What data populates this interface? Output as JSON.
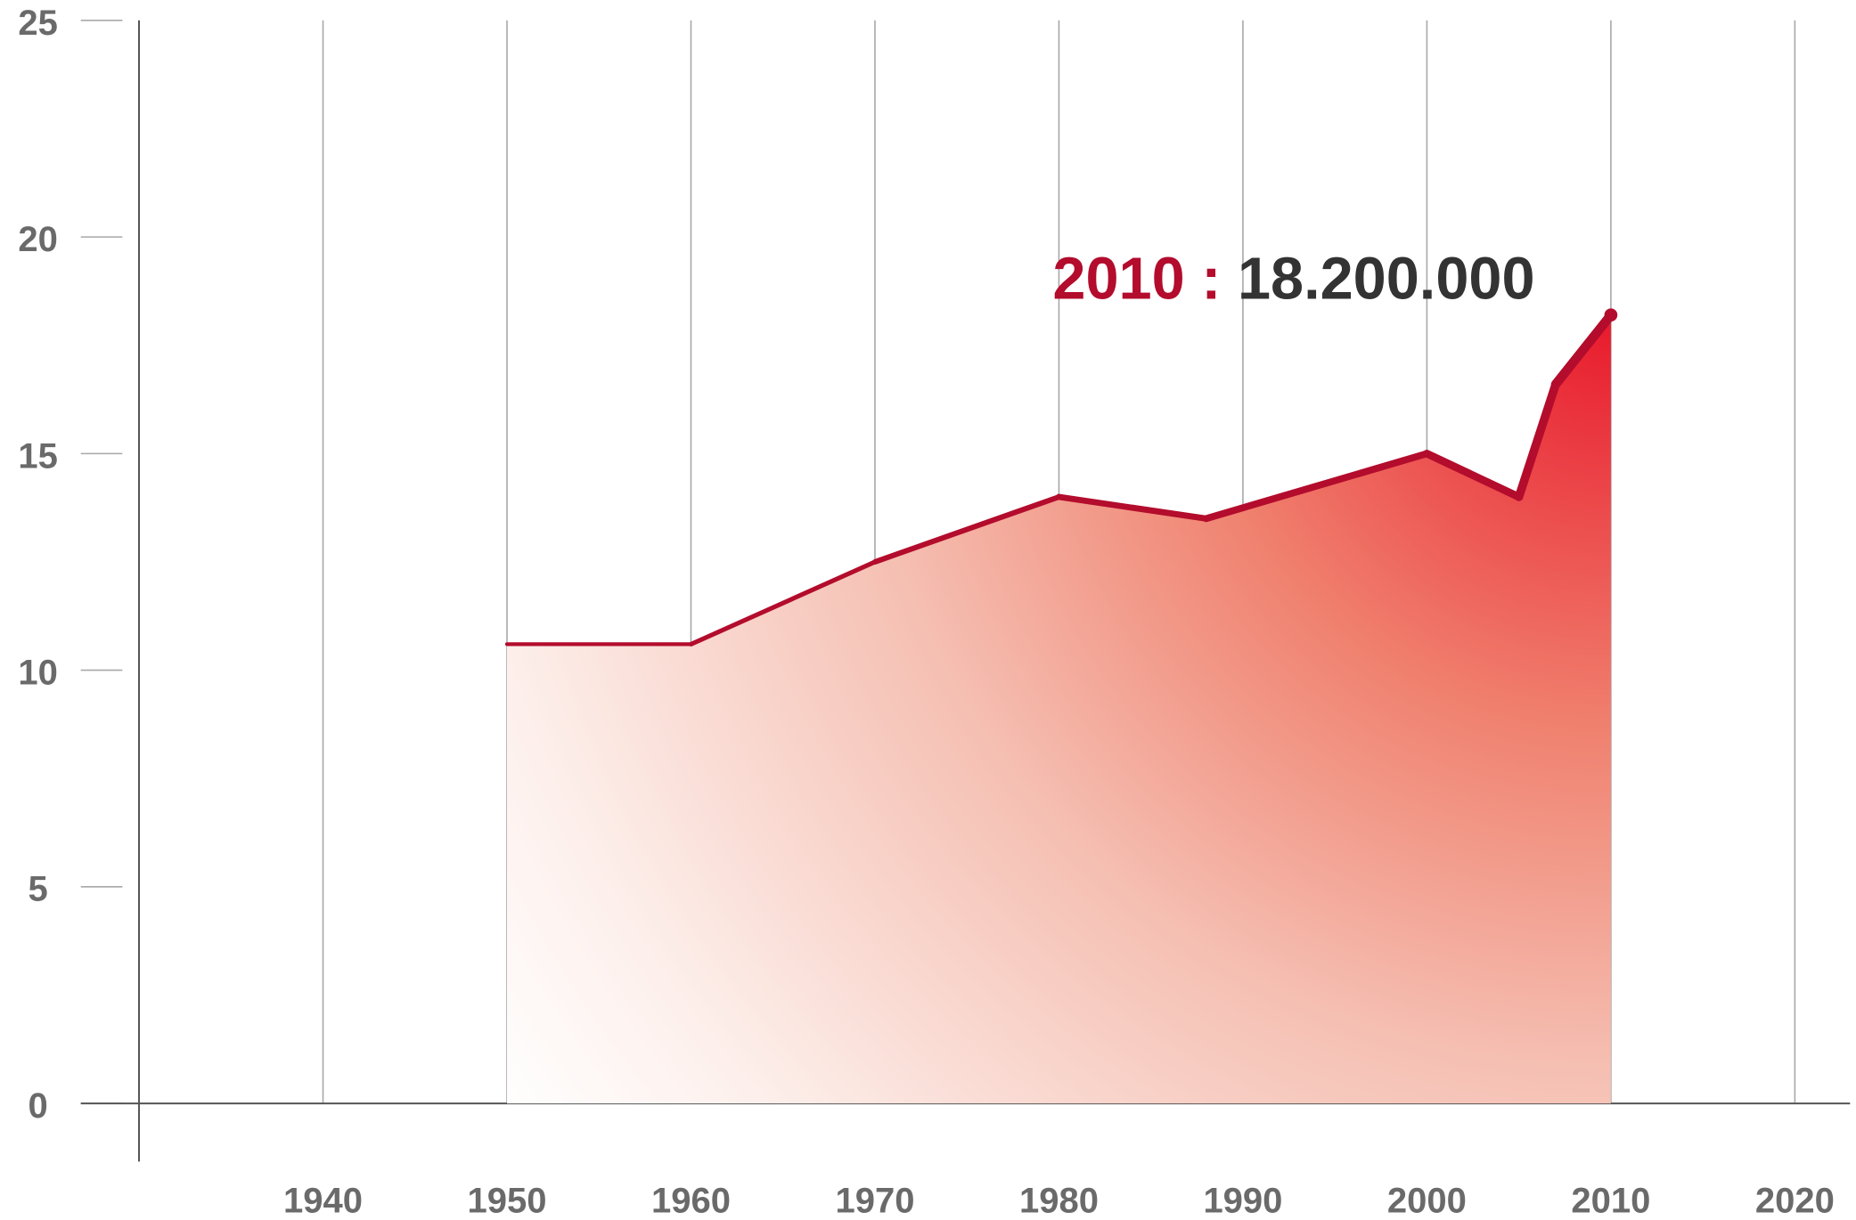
{
  "chart_data": {
    "type": "area",
    "x": [
      1950,
      1960,
      1970,
      1980,
      1988,
      2000,
      2005,
      2007,
      2010
    ],
    "series": [
      {
        "color": "#b30c2c",
        "values": [
          10.6,
          10.6,
          12.5,
          14.0,
          13.5,
          15.0,
          14.0,
          16.6,
          18.2
        ]
      }
    ],
    "xlim": [
      1930,
      2023
    ],
    "xticks": [
      1940,
      1950,
      1960,
      1970,
      1980,
      1990,
      2000,
      2010,
      2020
    ],
    "ylim": [
      0,
      25
    ],
    "yticks": [
      0,
      5,
      10,
      15,
      20,
      25
    ],
    "grid": true,
    "annotation": {
      "label": "2010 :",
      "value": "18.200.000",
      "label_color": "#b30c2c",
      "value_color": "#333333"
    }
  }
}
